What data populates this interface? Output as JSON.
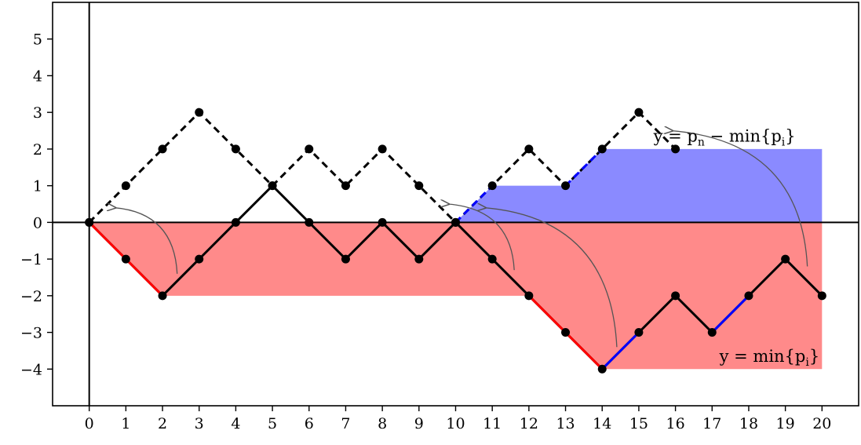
{
  "chart_data": {
    "type": "line",
    "xlim": [
      -1,
      21
    ],
    "ylim": [
      -5,
      6
    ],
    "x_ticks": [
      0,
      1,
      2,
      3,
      4,
      5,
      6,
      7,
      8,
      9,
      10,
      11,
      12,
      13,
      14,
      15,
      16,
      17,
      18,
      19,
      20
    ],
    "y_ticks": [
      -4,
      -3,
      -2,
      -1,
      0,
      1,
      2,
      3,
      4,
      5
    ],
    "y_tick_labels": [
      "−4",
      "−3",
      "−2",
      "−1",
      "0",
      "1",
      "2",
      "3",
      "4",
      "5"
    ],
    "grid": false,
    "series": [
      {
        "x": [
          0,
          1,
          2,
          3,
          4,
          5,
          6,
          7,
          8,
          9,
          10,
          11,
          12,
          13,
          14,
          15,
          16,
          17,
          18,
          19,
          20
        ],
        "y": [
          0,
          -1,
          -2,
          -1,
          0,
          1,
          0,
          -1,
          0,
          -1,
          0,
          -1,
          -2,
          -3,
          -4,
          -3,
          -2,
          -3,
          -2,
          -1,
          -2
        ],
        "style": "solid",
        "color": "#000000"
      },
      {
        "x": [
          0,
          1,
          2,
          3,
          4,
          5,
          6,
          7,
          8,
          9,
          10,
          11,
          12,
          13,
          14,
          15,
          16
        ],
        "y": [
          0,
          1,
          2,
          3,
          2,
          1,
          2,
          1,
          2,
          1,
          0,
          1,
          2,
          1,
          2,
          3,
          2
        ],
        "style": "dashed",
        "color": "#000000"
      }
    ],
    "min_profile": {
      "x": [
        0,
        2,
        12,
        14,
        20
      ],
      "y": [
        0,
        -2,
        -2,
        -4,
        -4
      ],
      "fill_color": "#ff8a8a"
    },
    "difference_profile": {
      "x": [
        10,
        11,
        13,
        14,
        20
      ],
      "y": [
        0,
        1,
        1,
        2,
        2
      ],
      "fill_color": "#8a8aff"
    },
    "red_segments": [
      [
        0,
        2
      ],
      [
        12,
        14
      ]
    ],
    "blue_segments": [
      [
        14,
        15
      ],
      [
        17,
        18
      ]
    ],
    "blue_dashed_segments": [
      [
        10,
        11
      ],
      [
        13,
        14
      ]
    ],
    "annotations": [
      {
        "text": "y = min{p",
        "sub": "i",
        "close": "}",
        "x": 17.2,
        "y": -3.8
      },
      {
        "text": "y = p",
        "sub": "n",
        "mid": " − min{p",
        "sub2": "i",
        "close": "}",
        "x": 15.4,
        "y": 2.2
      }
    ],
    "arrows": [
      {
        "from": [
          2.4,
          -1.4
        ],
        "to": [
          0.7,
          0.4
        ]
      },
      {
        "from": [
          11.6,
          -1.3
        ],
        "to": [
          9.8,
          0.5
        ]
      },
      {
        "from": [
          14.4,
          -3.4
        ],
        "to": [
          10.8,
          0.4
        ]
      },
      {
        "from": [
          19.6,
          -1.2
        ],
        "to": [
          15.9,
          2.5
        ]
      }
    ],
    "colors": {
      "path": "#000000",
      "red": "#ff0000",
      "blue": "#0000ff",
      "arrow": "#555555"
    }
  }
}
